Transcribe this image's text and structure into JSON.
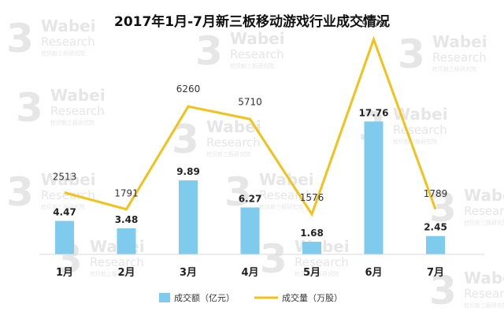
{
  "watermark": {
    "logo_text": "Wabei",
    "sub_text": "Research",
    "small_text": "挖贝新三板研究院",
    "color": "#e6e6e6"
  },
  "chart_data": {
    "type": "bar",
    "title": "2017年1月-7月新三板移动游戏行业成交情况",
    "categories": [
      "1月",
      "2月",
      "3月",
      "4月",
      "5月",
      "6月",
      "7月"
    ],
    "series": [
      {
        "name": "成交额（亿元）",
        "type": "bar",
        "axis": "left",
        "color": "#7ecbee",
        "values": [
          4.47,
          3.48,
          9.89,
          6.27,
          1.68,
          17.76,
          2.45
        ],
        "labels": [
          "4.47",
          "3.48",
          "9.89",
          "6.27",
          "1.68",
          "17.76",
          "2.45"
        ]
      },
      {
        "name": "成交量（万股）",
        "type": "line",
        "axis": "right",
        "color": "#f2c21a",
        "values": [
          2513,
          1791,
          6260,
          5710,
          1576,
          9178,
          1789
        ],
        "labels": [
          "2513",
          "1791",
          "6260",
          "5710",
          "1576",
          "9178",
          "1789"
        ]
      }
    ],
    "y_left_range": [
      0,
      20
    ],
    "y_right_range": [
      0,
      10000
    ],
    "grid": false,
    "legend_position": "bottom-center"
  }
}
